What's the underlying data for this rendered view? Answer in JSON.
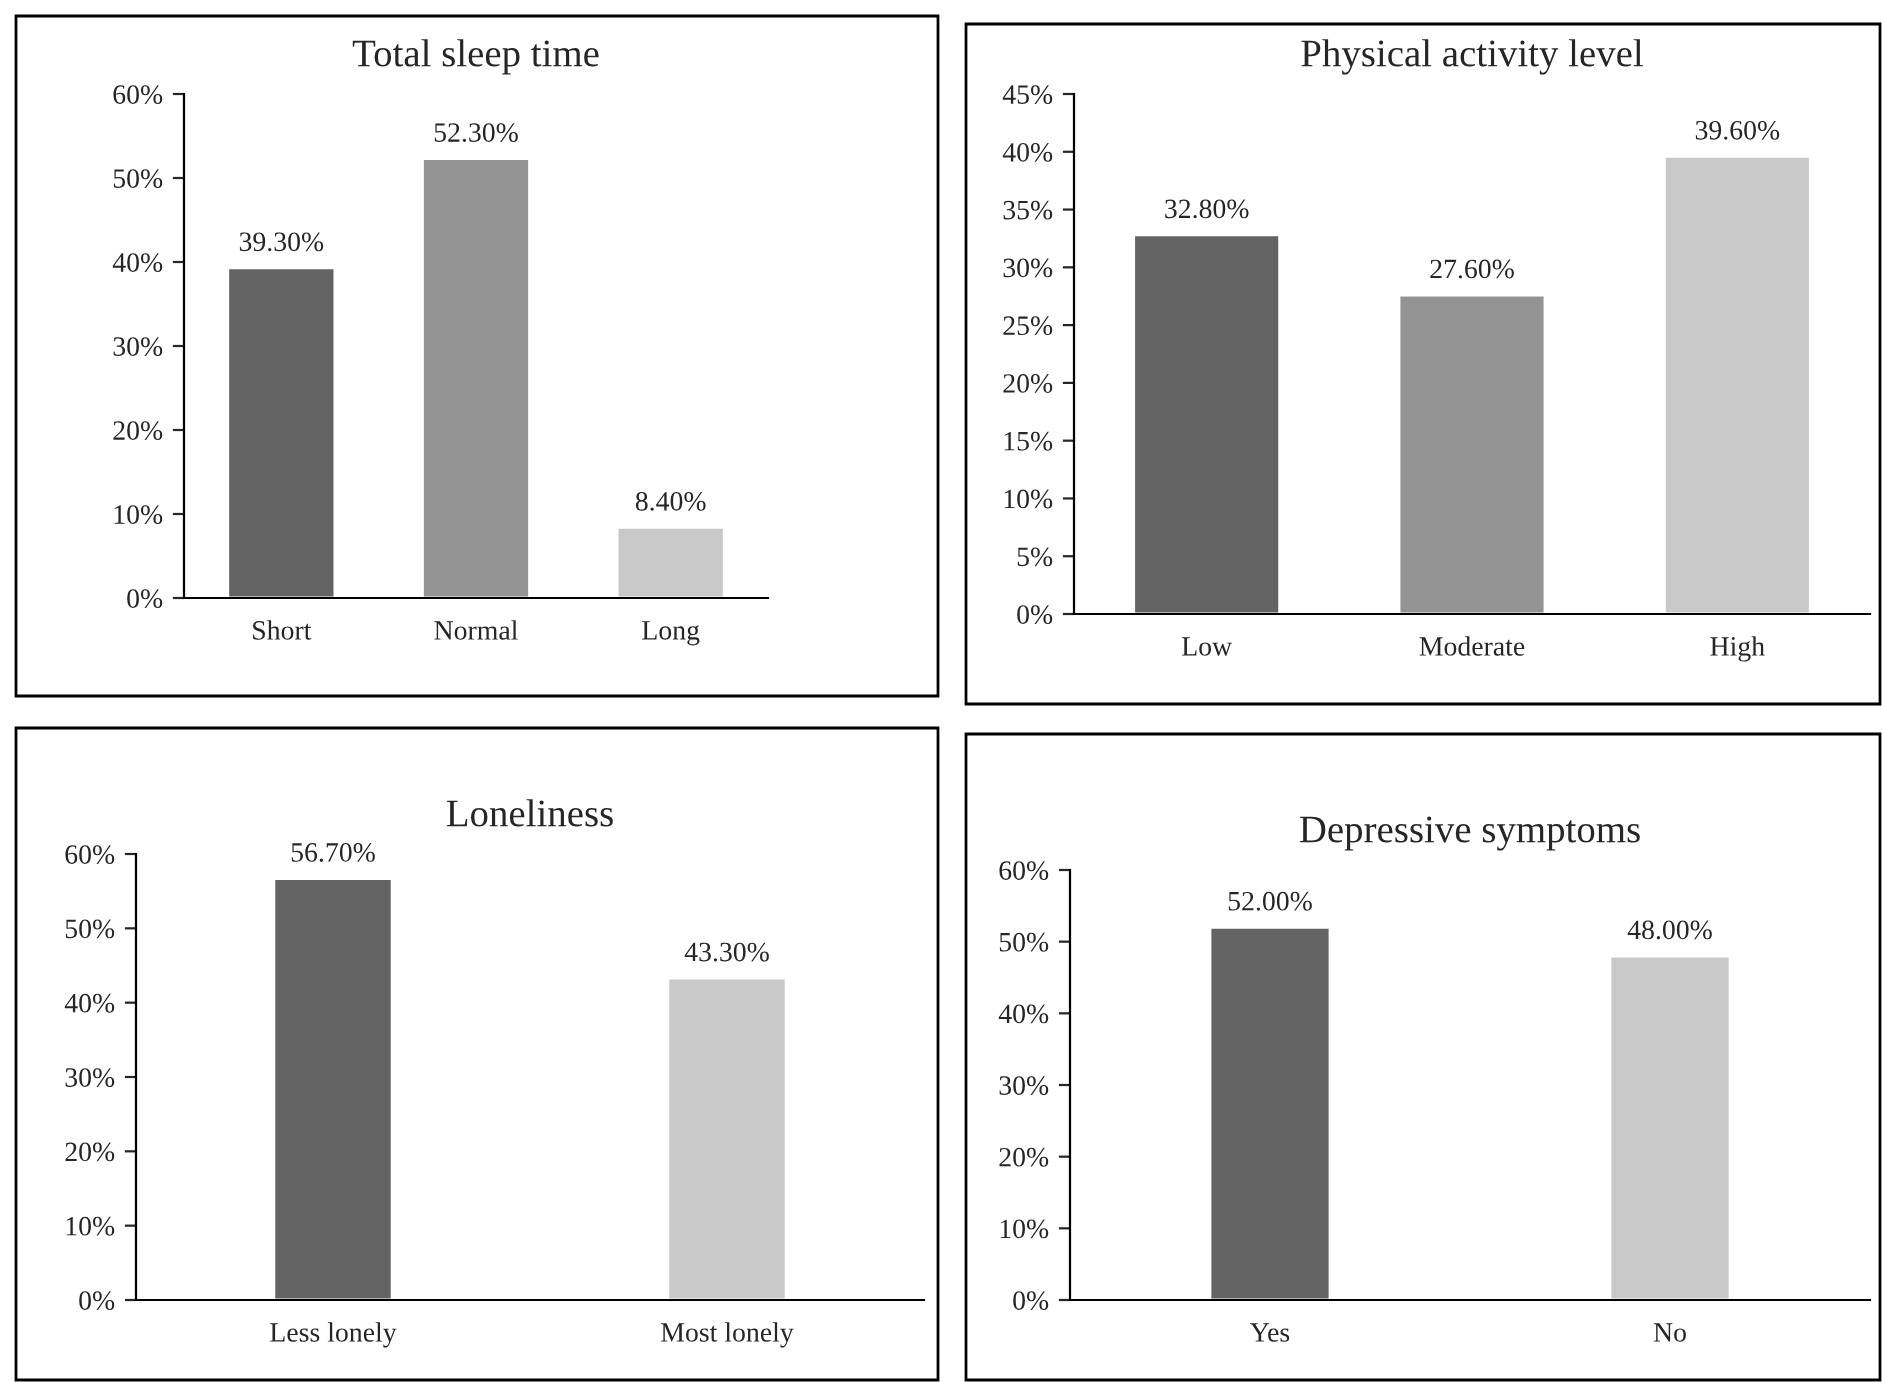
{
  "chart_data": [
    {
      "type": "bar",
      "title": "Total sleep time",
      "categories": [
        "Short",
        "Normal",
        "Long"
      ],
      "values": [
        39.3,
        52.3,
        8.4
      ],
      "colors": [
        "#636363",
        "#939393",
        "#c8c8c8"
      ],
      "value_labels": [
        "39.30%",
        "52.30%",
        "8.40%"
      ],
      "ylim": [
        0,
        60
      ],
      "yticks": [
        {
          "value": 0,
          "label": "0%"
        },
        {
          "value": 10,
          "label": "10%"
        },
        {
          "value": 20,
          "label": "20%"
        },
        {
          "value": 30,
          "label": "30%"
        },
        {
          "value": 40,
          "label": "40%"
        },
        {
          "value": 50,
          "label": "50%"
        },
        {
          "value": 60,
          "label": "60%"
        }
      ],
      "grid": false,
      "legend": false
    },
    {
      "type": "bar",
      "title": "Physical activity level",
      "categories": [
        "Low",
        "Moderate",
        "High"
      ],
      "values": [
        32.8,
        27.6,
        39.6
      ],
      "colors": [
        "#636363",
        "#939393",
        "#c8c8c8"
      ],
      "value_labels": [
        "32.80%",
        "27.60%",
        "39.60%"
      ],
      "ylim": [
        0,
        45
      ],
      "yticks": [
        {
          "value": 0,
          "label": "0%"
        },
        {
          "value": 5,
          "label": "5%"
        },
        {
          "value": 10,
          "label": "10%"
        },
        {
          "value": 15,
          "label": "15%"
        },
        {
          "value": 20,
          "label": "20%"
        },
        {
          "value": 25,
          "label": "25%"
        },
        {
          "value": 30,
          "label": "30%"
        },
        {
          "value": 35,
          "label": "35%"
        },
        {
          "value": 40,
          "label": "40%"
        },
        {
          "value": 45,
          "label": "45%"
        }
      ],
      "grid": false,
      "legend": false
    },
    {
      "type": "bar",
      "title": "Loneliness",
      "categories": [
        "Less lonely",
        "Most lonely"
      ],
      "values": [
        56.7,
        43.3
      ],
      "colors": [
        "#636363",
        "#c8c8c8"
      ],
      "value_labels": [
        "56.70%",
        "43.30%"
      ],
      "ylim": [
        0,
        60
      ],
      "yticks": [
        {
          "value": 0,
          "label": "0%"
        },
        {
          "value": 10,
          "label": "10%"
        },
        {
          "value": 20,
          "label": "20%"
        },
        {
          "value": 30,
          "label": "30%"
        },
        {
          "value": 40,
          "label": "40%"
        },
        {
          "value": 50,
          "label": "50%"
        },
        {
          "value": 60,
          "label": "60%"
        }
      ],
      "grid": false,
      "legend": false
    },
    {
      "type": "bar",
      "title": "Depressive symptoms",
      "categories": [
        "Yes",
        "No"
      ],
      "values": [
        52.0,
        48.0
      ],
      "colors": [
        "#636363",
        "#c8c8c8"
      ],
      "value_labels": [
        "52.00%",
        "48.00%"
      ],
      "ylim": [
        0,
        60
      ],
      "yticks": [
        {
          "value": 0,
          "label": "0%"
        },
        {
          "value": 10,
          "label": "10%"
        },
        {
          "value": 20,
          "label": "20%"
        },
        {
          "value": 30,
          "label": "30%"
        },
        {
          "value": 40,
          "label": "40%"
        },
        {
          "value": 50,
          "label": "50%"
        },
        {
          "value": 60,
          "label": "60%"
        }
      ],
      "grid": false,
      "legend": false
    }
  ]
}
